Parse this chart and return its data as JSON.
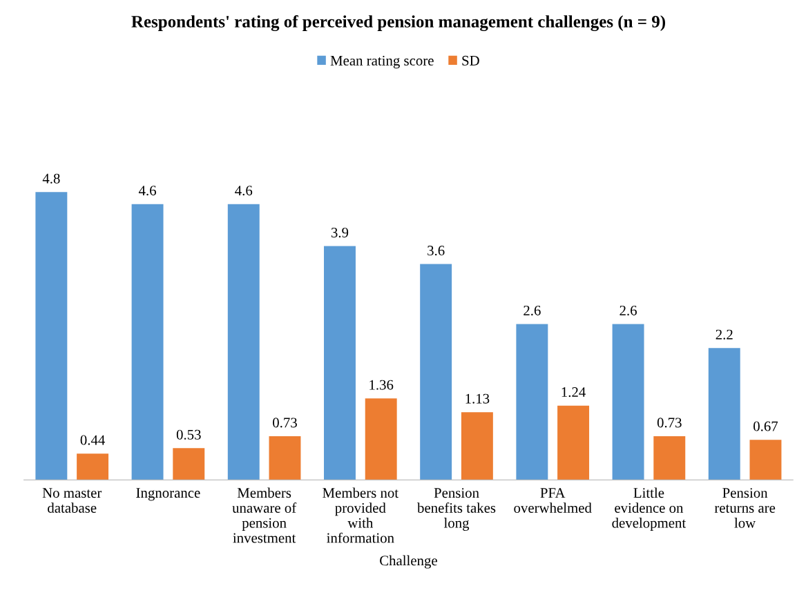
{
  "chart_data": {
    "type": "bar",
    "title": "Respondents' rating of perceived pension management challenges (n = 9)",
    "xlabel": "Challenge",
    "categories": [
      "No master\ndatabase",
      "Ingnorance",
      "Members\nunaware of\npension\ninvestment",
      "Members not\nprovided\nwith\ninformation",
      "Pension\nbenefits takes\nlong",
      "PFA\noverwhelmed",
      "Little\nevidence on\ndevelopment",
      "Pension\nreturns are\nlow"
    ],
    "series": [
      {
        "name": "Mean rating score",
        "color": "#5b9bd5",
        "values": [
          4.8,
          4.6,
          4.6,
          3.9,
          3.6,
          2.6,
          2.6,
          2.2
        ]
      },
      {
        "name": "SD",
        "color": "#ed7d31",
        "values": [
          0.44,
          0.53,
          0.73,
          1.36,
          1.13,
          1.24,
          0.73,
          0.67
        ]
      }
    ],
    "data_labels": true,
    "legend": "top",
    "grid": false
  }
}
